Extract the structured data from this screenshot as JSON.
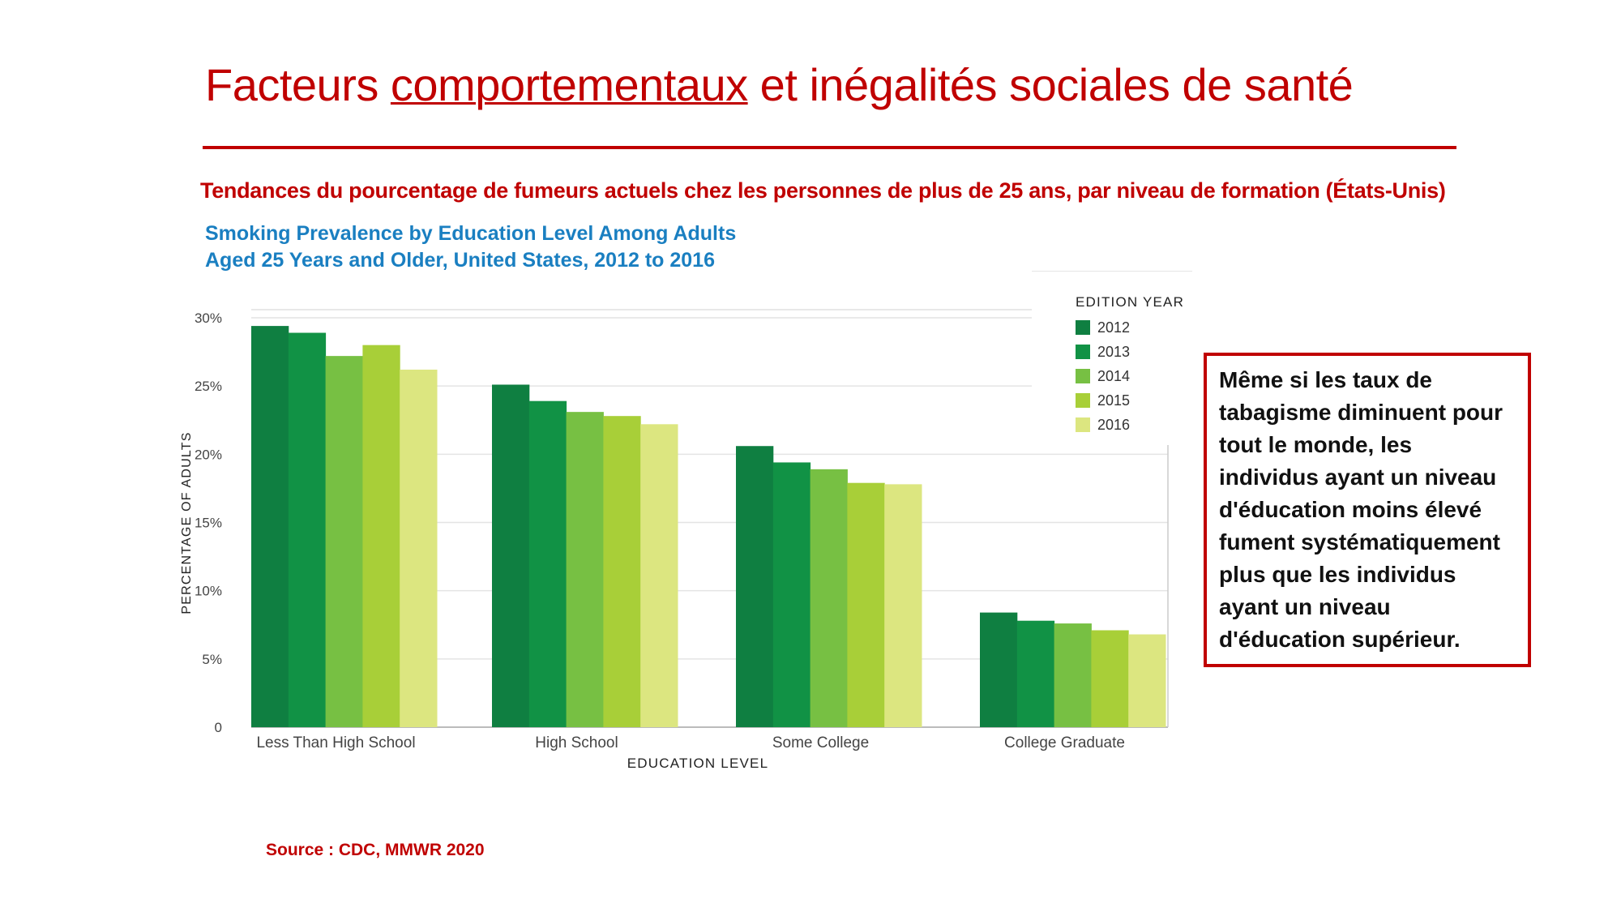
{
  "slide": {
    "title_before": "Facteurs ",
    "title_underlined": "comportementaux",
    "title_after": " et inégalités sociales de santé",
    "subtitle": "Tendances du pourcentage de fumeurs actuels chez les personnes de plus de 25 ans, par niveau de formation (États-Unis)",
    "note": "Même si les taux de tabagisme diminuent pour tout le monde, les individus ayant un niveau d'éducation moins élevé fument systématiquement plus que les individus ayant un niveau d'éducation supérieur.",
    "source": "Source : CDC, MMWR 2020",
    "accent_color": "#c00000"
  },
  "chart_data": {
    "type": "bar",
    "title_line1": "Smoking Prevalence by Education Level Among Adults",
    "title_line2": "Aged 25 Years and Older, United States, 2012 to 2016",
    "xlabel": "EDUCATION LEVEL",
    "ylabel": "PERCENTAGE OF ADULTS",
    "ylim": [
      0,
      30
    ],
    "yticks": [
      "0",
      "5%",
      "10%",
      "15%",
      "20%",
      "25%",
      "30%"
    ],
    "grid": true,
    "legend_title": "EDITION YEAR",
    "legend_position": "top-right",
    "categories": [
      "Less Than High School",
      "High School",
      "Some College",
      "College Graduate"
    ],
    "series": [
      {
        "name": "2012",
        "color": "#0f7f41",
        "values": [
          29.4,
          25.1,
          20.6,
          8.4
        ]
      },
      {
        "name": "2013",
        "color": "#119245",
        "values": [
          28.9,
          23.9,
          19.4,
          7.8
        ]
      },
      {
        "name": "2014",
        "color": "#77c043",
        "values": [
          27.2,
          23.1,
          18.9,
          7.6
        ]
      },
      {
        "name": "2015",
        "color": "#a8cf38",
        "values": [
          28.0,
          22.8,
          17.9,
          7.1
        ]
      },
      {
        "name": "2016",
        "color": "#dce680",
        "values": [
          26.2,
          22.2,
          17.8,
          6.8
        ]
      }
    ]
  }
}
